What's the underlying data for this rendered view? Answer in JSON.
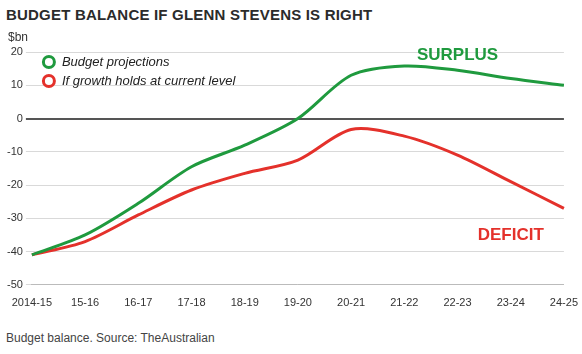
{
  "chart_data": {
    "type": "line",
    "title": "BUDGET BALANCE IF GLENN STEVENS IS RIGHT",
    "y_label": "$bn",
    "categories": [
      "2014-15",
      "15-16",
      "16-17",
      "17-18",
      "18-19",
      "19-20",
      "20-21",
      "21-22",
      "22-23",
      "23-24",
      "24-25"
    ],
    "series": [
      {
        "name": "Budget projections",
        "color": "#1f9a3e",
        "values": [
          -41,
          -35,
          -25.5,
          -14.5,
          -8,
          0,
          13,
          15.8,
          14.5,
          12,
          10
        ]
      },
      {
        "name": "If growth holds at current level",
        "color": "#e4312b",
        "values": [
          -41,
          -37,
          -29,
          -21.5,
          -16.5,
          -12.5,
          -3.3,
          -5.3,
          -11,
          -19,
          -27
        ]
      }
    ],
    "ylim": [
      -50,
      20
    ],
    "yticks": [
      -50,
      -40,
      -30,
      -20,
      -10,
      0,
      10,
      20
    ],
    "grid": true,
    "legend": "upper left",
    "annotations": [
      {
        "text": "SURPLUS",
        "x": "22-23",
        "y": 19,
        "color": "#1f9a3e"
      },
      {
        "text": "DEFICIT",
        "x": "23-24",
        "y": -35,
        "color": "#e4312b"
      }
    ],
    "caption": "Budget balance. Source: TheAustralian"
  }
}
